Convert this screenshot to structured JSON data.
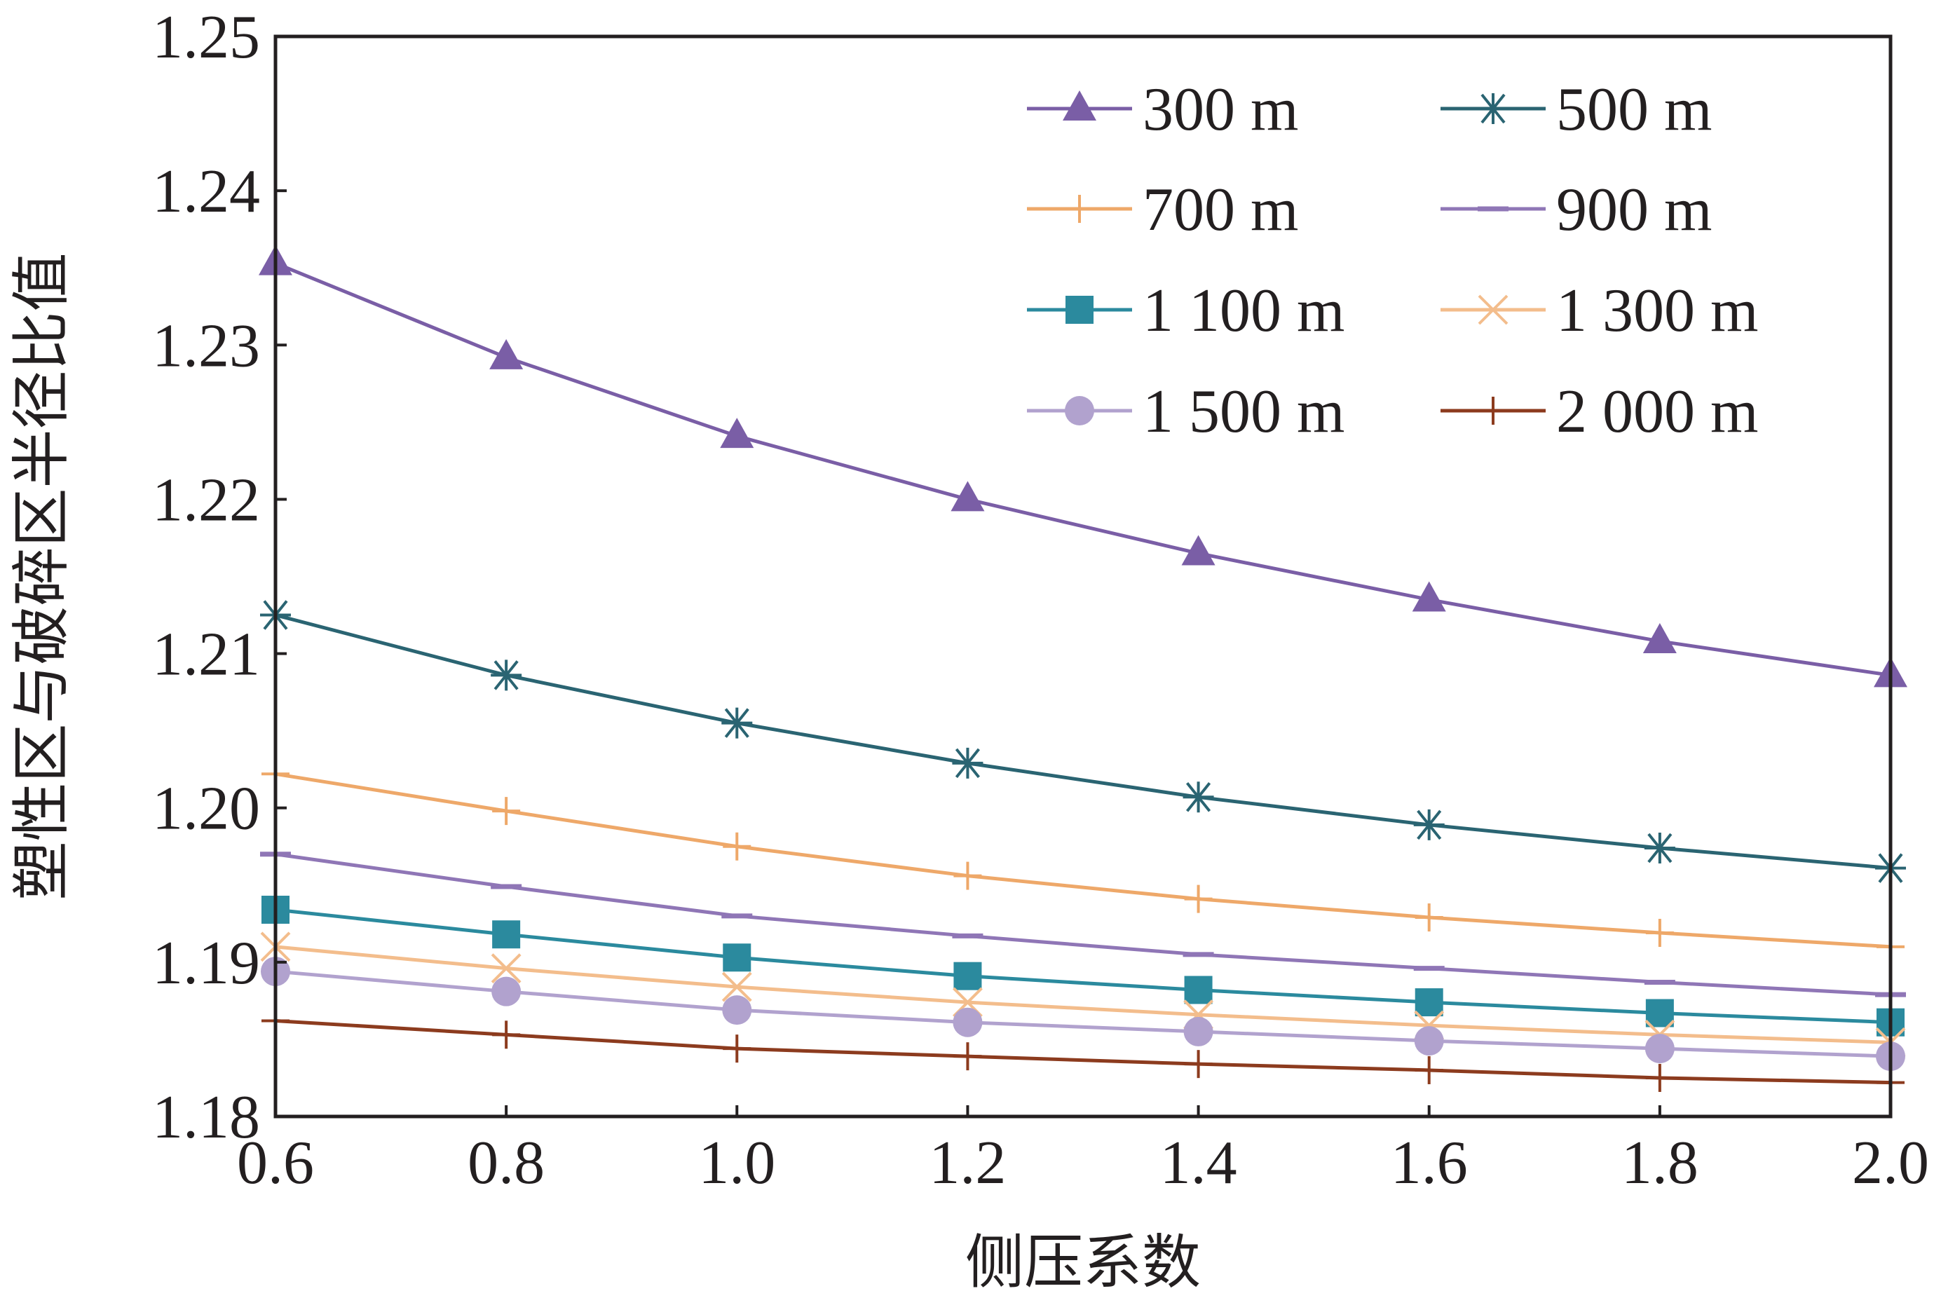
{
  "chart_data": {
    "type": "line",
    "title": "",
    "xlabel": "侧压系数",
    "ylabel": "塑性区与破碎区半径比值",
    "x": [
      0.6,
      0.8,
      1.0,
      1.2,
      1.4,
      1.6,
      1.8,
      2.0
    ],
    "x_tick_labels": [
      "0.6",
      "0.8",
      "1.0",
      "1.2",
      "1.4",
      "1.6",
      "1.8",
      "2.0"
    ],
    "xlim": [
      0.6,
      2.0
    ],
    "ylim": [
      1.18,
      1.25
    ],
    "y_ticks": [
      1.18,
      1.19,
      1.2,
      1.21,
      1.22,
      1.23,
      1.24,
      1.25
    ],
    "y_tick_labels": [
      "1.18",
      "1.19",
      "1.20",
      "1.21",
      "1.22",
      "1.23",
      "1.24",
      "1.25"
    ],
    "grid": false,
    "legend_position": "top-right",
    "series": [
      {
        "name": "300 m",
        "color": "#7a5ea6",
        "marker": "triangle",
        "values": [
          1.2353,
          1.2292,
          1.2241,
          1.22,
          1.2165,
          1.2135,
          1.2108,
          1.2086
        ]
      },
      {
        "name": "500 m",
        "color": "#2a6472",
        "marker": "asterisk",
        "values": [
          1.2125,
          1.2086,
          1.2055,
          1.2029,
          1.2007,
          1.1989,
          1.1974,
          1.1961
        ]
      },
      {
        "name": "700 m",
        "color": "#eea869",
        "marker": "plus",
        "values": [
          1.2022,
          1.1998,
          1.1975,
          1.1956,
          1.1941,
          1.1929,
          1.1919,
          1.191
        ]
      },
      {
        "name": "900 m",
        "color": "#8f76b6",
        "marker": "dash",
        "values": [
          1.197,
          1.1949,
          1.193,
          1.1917,
          1.1905,
          1.1896,
          1.1887,
          1.1879
        ]
      },
      {
        "name": "1 100 m",
        "color": "#2b8a9e",
        "marker": "square",
        "values": [
          1.1934,
          1.1918,
          1.1903,
          1.1891,
          1.1882,
          1.1874,
          1.1867,
          1.1861
        ]
      },
      {
        "name": "1 300 m",
        "color": "#f3bd8c",
        "marker": "x",
        "values": [
          1.191,
          1.1896,
          1.1884,
          1.1874,
          1.1866,
          1.1859,
          1.1853,
          1.1848
        ]
      },
      {
        "name": "1 500 m",
        "color": "#b1a2ce",
        "marker": "circle",
        "values": [
          1.1894,
          1.1881,
          1.1869,
          1.1861,
          1.1855,
          1.1849,
          1.1844,
          1.1839
        ]
      },
      {
        "name": "2 000 m",
        "color": "#8c3b1e",
        "marker": "plus",
        "values": [
          1.1862,
          1.1853,
          1.1844,
          1.1839,
          1.1834,
          1.183,
          1.1825,
          1.1822
        ]
      }
    ]
  }
}
